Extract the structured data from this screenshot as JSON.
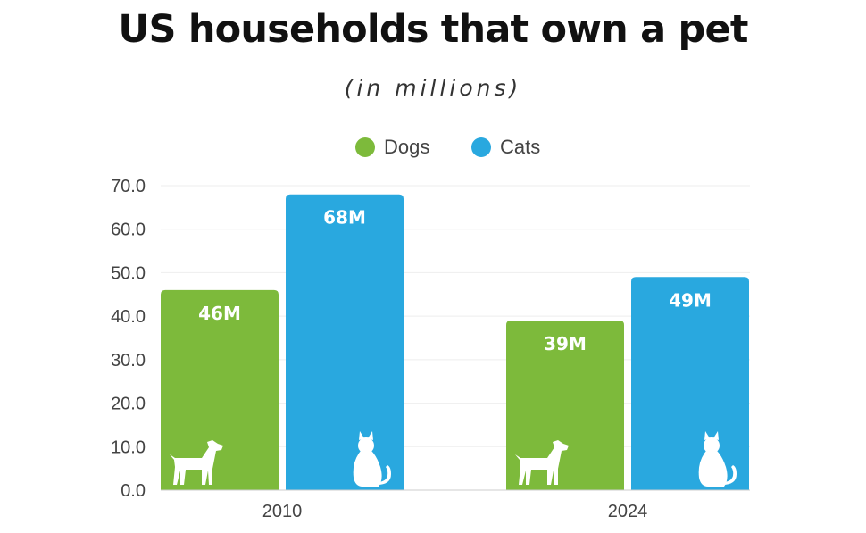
{
  "chart_data": {
    "type": "bar",
    "title": "US households that own a pet",
    "subtitle": "(in millions)",
    "categories": [
      "2010",
      "2024"
    ],
    "series": [
      {
        "name": "Dogs",
        "color": "#7dba3b",
        "values": [
          46,
          39
        ],
        "labels": [
          "46M",
          "39M"
        ],
        "icon": "dog-icon"
      },
      {
        "name": "Cats",
        "color": "#29a8df",
        "values": [
          68,
          49
        ],
        "labels": [
          "68M",
          "49M"
        ],
        "icon": "cat-icon"
      }
    ],
    "ylim": [
      0,
      70
    ],
    "yticks": [
      "0.0",
      "10.0",
      "20.0",
      "30.0",
      "40.0",
      "50.0",
      "60.0",
      "70.0"
    ],
    "xlabel": "",
    "ylabel": "",
    "legend": "top-center",
    "grid": true
  }
}
